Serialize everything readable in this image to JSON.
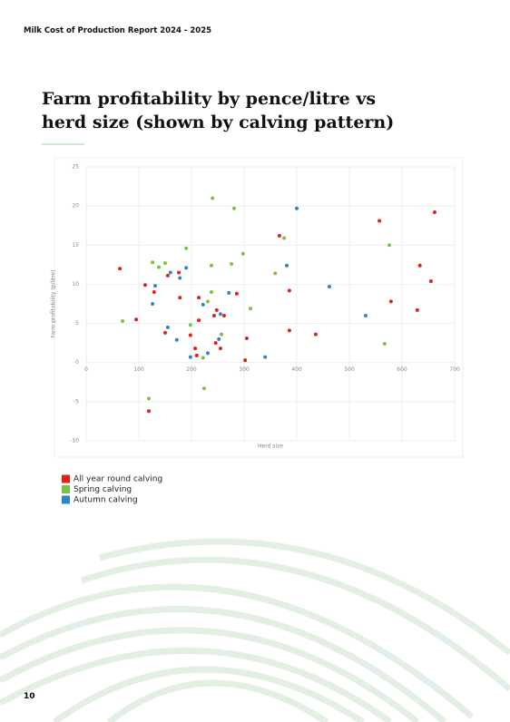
{
  "header": "Milk Cost of Production Report 2024 - 2025",
  "title": "Farm profitability by pence/litre vs herd size (shown by calving pattern)",
  "page_number": 10,
  "chart_data": {
    "type": "scatter",
    "xlabel": "Herd size",
    "ylabel": "Farm profitability (p/litre)",
    "xlim": [
      0,
      700
    ],
    "xticks": [
      0,
      100,
      200,
      300,
      400,
      500,
      600,
      700
    ],
    "ylim": [
      -10,
      25
    ],
    "yticks": [
      -10,
      -5,
      0,
      5,
      10,
      15,
      20,
      25
    ],
    "grid": true,
    "legend": "bottom-left",
    "series": [
      {
        "name": "All year round calving",
        "color": "#e0201b",
        "x": [
          64,
          112,
          129,
          95,
          178,
          214,
          155,
          176,
          214,
          243,
          262,
          246,
          255,
          207,
          210,
          198,
          150,
          119,
          286,
          305,
          302,
          367,
          386,
          386,
          436,
          557,
          579,
          629,
          634,
          655,
          662,
          248
        ],
        "values": [
          12.0,
          9.9,
          9.0,
          5.5,
          8.3,
          8.3,
          11.1,
          11.5,
          5.4,
          6.0,
          6.0,
          2.5,
          1.8,
          1.8,
          0.9,
          3.5,
          3.8,
          -6.2,
          8.8,
          3.1,
          0.3,
          16.2,
          9.2,
          4.1,
          3.6,
          18.1,
          7.8,
          6.7,
          12.4,
          10.4,
          19.2,
          6.7
        ]
      },
      {
        "name": "Spring calving",
        "color": "#7cc143",
        "x": [
          69,
          119,
          126,
          138,
          150,
          190,
          240,
          281,
          298,
          238,
          276,
          238,
          231,
          198,
          224,
          359,
          376,
          312,
          257,
          222,
          576,
          567
        ],
        "values": [
          5.3,
          -4.6,
          12.8,
          12.2,
          12.7,
          14.6,
          21.0,
          19.7,
          13.9,
          12.4,
          12.6,
          9.0,
          7.8,
          4.8,
          -3.3,
          11.4,
          15.9,
          6.9,
          3.6,
          0.6,
          15.0,
          2.4
        ]
      },
      {
        "name": "Autumn calving",
        "color": "#2e86c8",
        "x": [
          131,
          160,
          178,
          190,
          126,
          155,
          172,
          198,
          231,
          252,
          255,
          271,
          340,
          400,
          381,
          462,
          531,
          222
        ],
        "values": [
          9.8,
          11.5,
          10.8,
          12.1,
          7.5,
          4.5,
          2.9,
          0.7,
          1.2,
          3.0,
          6.2,
          8.9,
          0.7,
          19.7,
          12.4,
          9.7,
          6.0,
          7.4
        ]
      }
    ]
  }
}
